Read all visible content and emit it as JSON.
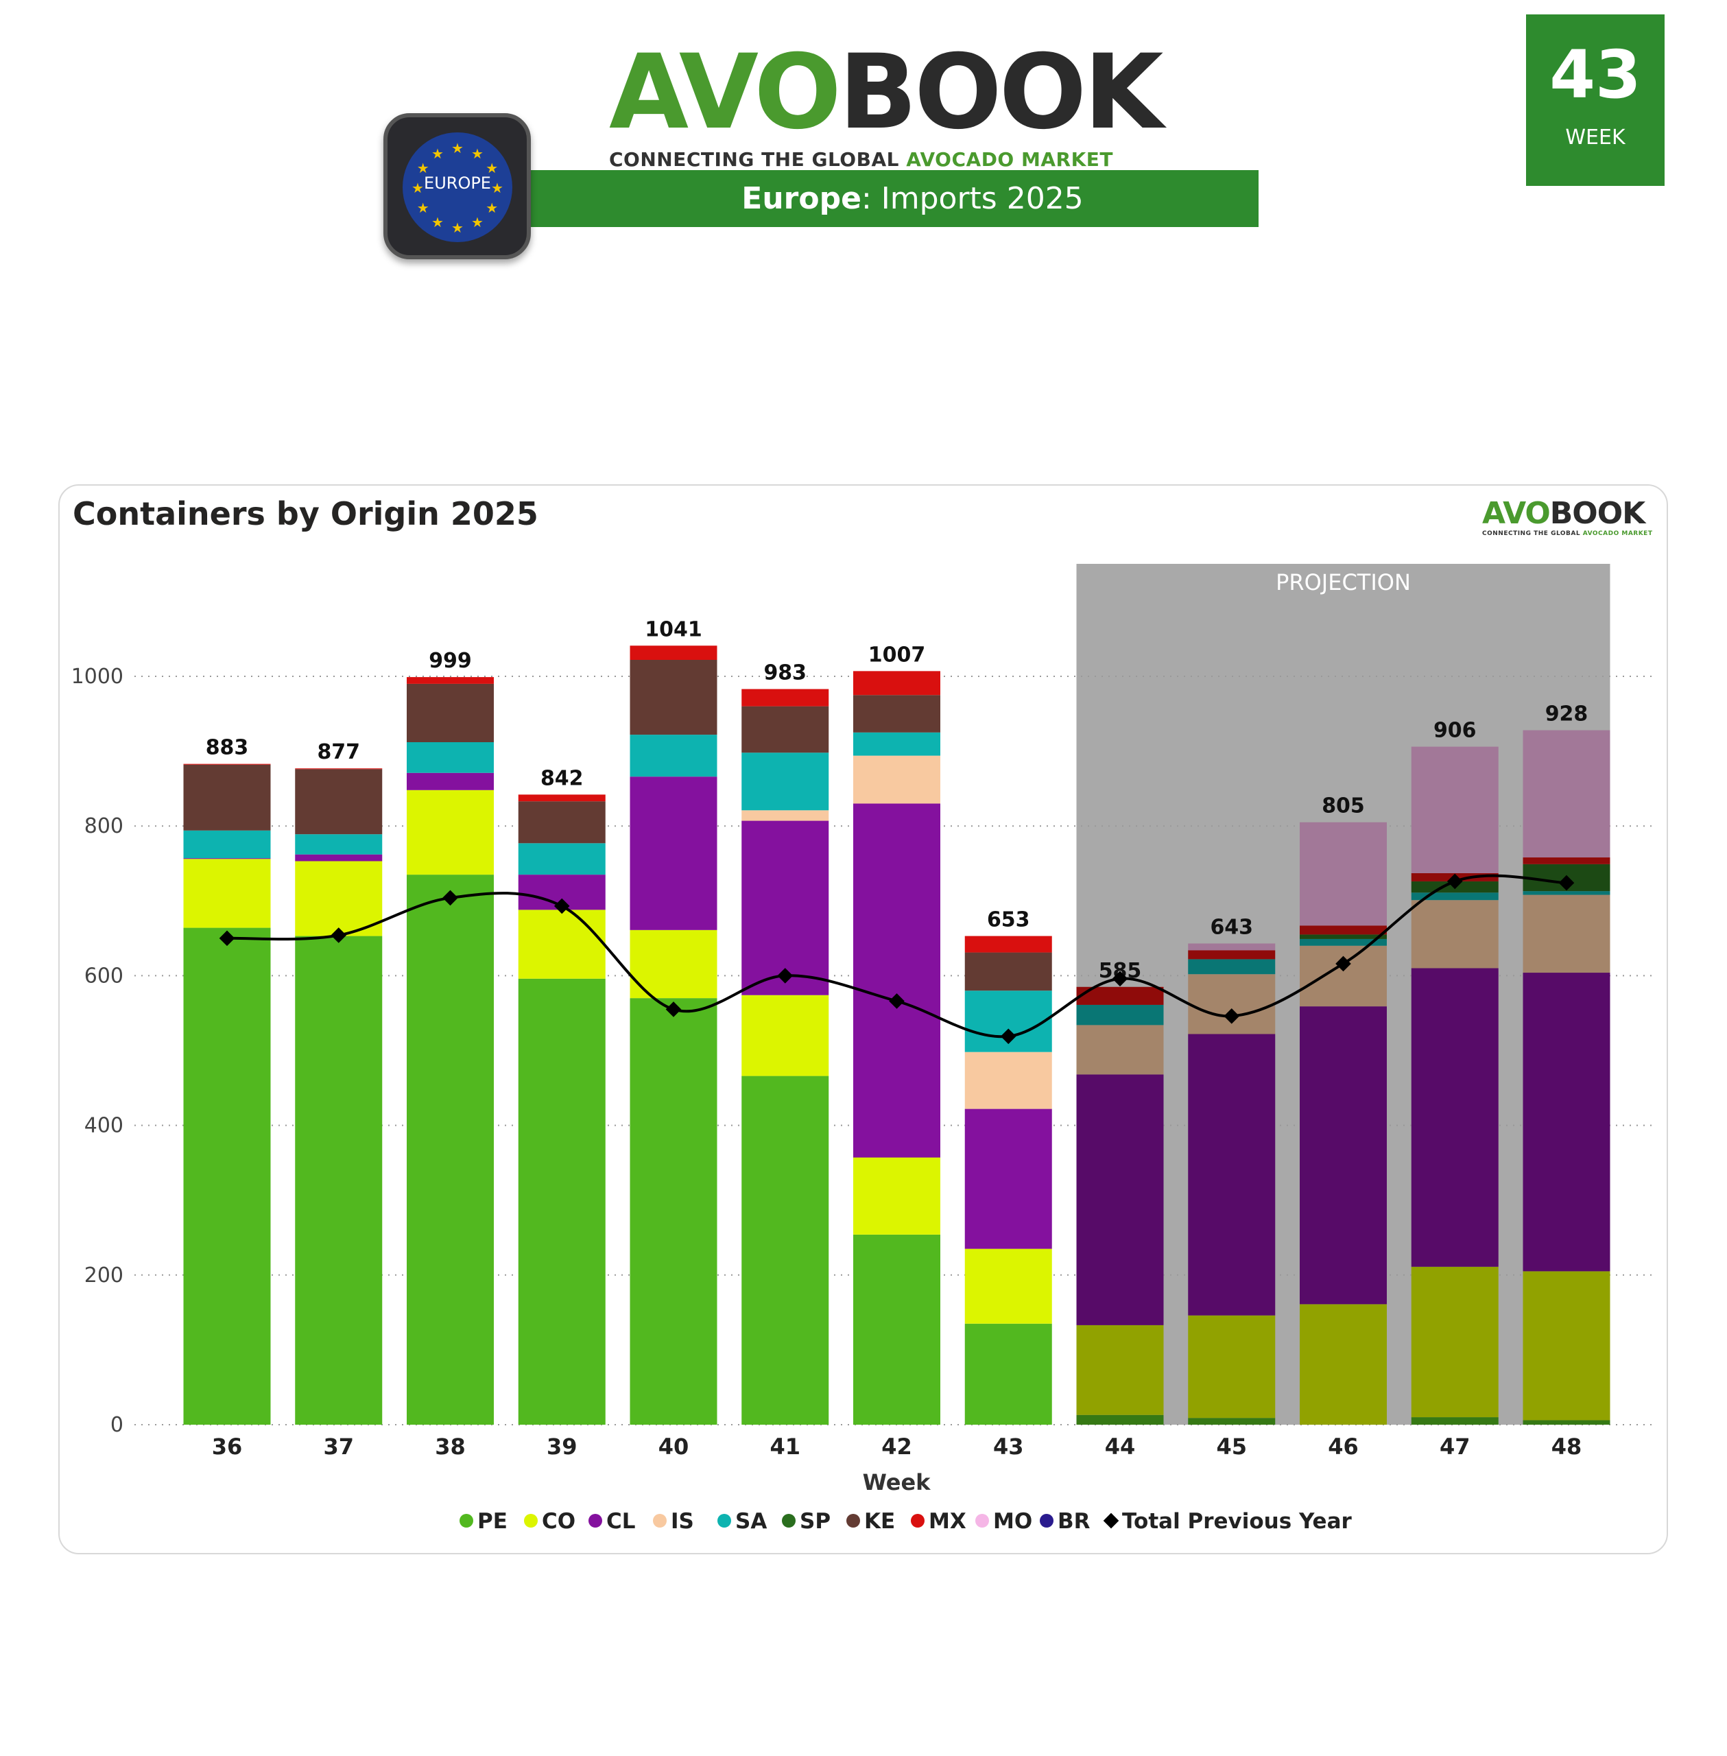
{
  "header": {
    "logo_part1": "AVO",
    "logo_part2": "BOOK",
    "tagline_part1": "CONNECTING THE GLOBAL ",
    "tagline_part2": "AVOCADO MARKET",
    "banner_region": "Europe",
    "banner_rest": ": Imports 2025",
    "region_badge": "EUROPE",
    "week_number": "43",
    "week_label": "WEEK"
  },
  "colors": {
    "brand_green": "#2e8b2e"
  },
  "chart_data": {
    "type": "bar",
    "stacked": true,
    "title": "Containers by Origin 2025",
    "xlabel": "Week",
    "ylabel": "",
    "ylim": [
      0,
      1100
    ],
    "yticks": [
      0,
      200,
      400,
      600,
      800,
      1000
    ],
    "grid": true,
    "legend_position": "bottom",
    "projection_label": "PROJECTION",
    "projection_from": "44",
    "categories": [
      "36",
      "37",
      "38",
      "39",
      "40",
      "41",
      "42",
      "43",
      "44",
      "45",
      "46",
      "47",
      "48"
    ],
    "totals": [
      883,
      877,
      999,
      842,
      1041,
      983,
      1007,
      653,
      585,
      643,
      805,
      906,
      928
    ],
    "series": [
      {
        "name": "PE",
        "color": "#52b81f",
        "values": [
          664,
          653,
          735,
          596,
          570,
          466,
          254,
          135,
          13,
          9,
          0,
          10,
          6
        ]
      },
      {
        "name": "CO",
        "color": "#dcf500",
        "values": [
          92,
          100,
          113,
          92,
          91,
          108,
          103,
          100,
          120,
          137,
          161,
          201,
          199
        ]
      },
      {
        "name": "CL",
        "color": "#84119e",
        "values": [
          1,
          9,
          23,
          47,
          205,
          233,
          473,
          187,
          335,
          376,
          398,
          399,
          399
        ]
      },
      {
        "name": "IS",
        "color": "#f8c9a0",
        "values": [
          0,
          0,
          0,
          0,
          0,
          14,
          64,
          76,
          66,
          80,
          81,
          91,
          104
        ]
      },
      {
        "name": "SA",
        "color": "#0db3b0",
        "values": [
          37,
          27,
          41,
          42,
          56,
          77,
          31,
          82,
          27,
          20,
          9,
          10,
          5
        ]
      },
      {
        "name": "SP",
        "color": "#2a6e1e",
        "values": [
          0,
          0,
          0,
          0,
          0,
          0,
          0,
          0,
          0,
          0,
          6,
          15,
          36
        ]
      },
      {
        "name": "KE",
        "color": "#633b33",
        "values": [
          88,
          87,
          78,
          56,
          100,
          62,
          50,
          51,
          0,
          0,
          0,
          0,
          0
        ]
      },
      {
        "name": "MX",
        "color": "#d9100f",
        "values": [
          1,
          1,
          9,
          9,
          19,
          23,
          32,
          22,
          24,
          12,
          12,
          11,
          9
        ]
      },
      {
        "name": "MO",
        "color": "#f5b6e6",
        "values": [
          0,
          0,
          0,
          0,
          0,
          0,
          0,
          0,
          0,
          9,
          138,
          169,
          170
        ]
      },
      {
        "name": "BR",
        "color": "#2a1b8e",
        "values": [
          0,
          0,
          0,
          0,
          0,
          0,
          0,
          0,
          0,
          0,
          0,
          0,
          0
        ]
      }
    ],
    "line": {
      "name": "Total Previous Year",
      "color": "#000000",
      "values": [
        650,
        654,
        704,
        693,
        555,
        600,
        566,
        519,
        596,
        546,
        616,
        726,
        724
      ]
    }
  }
}
